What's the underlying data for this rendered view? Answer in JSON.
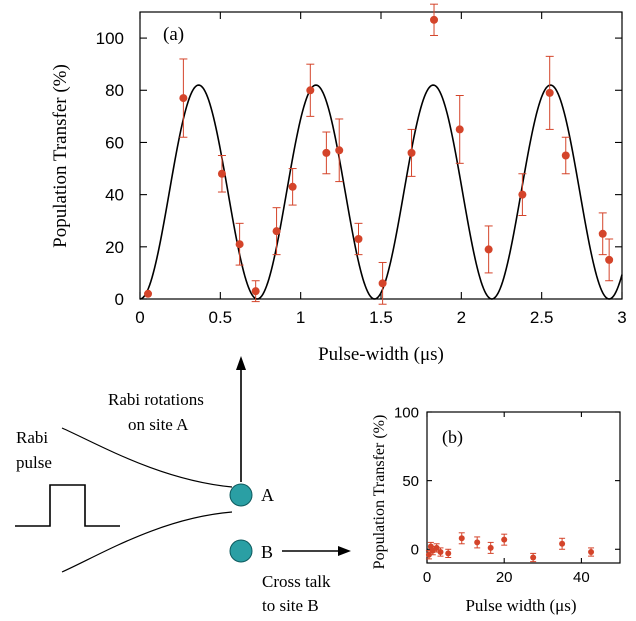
{
  "chart_data": [
    {
      "type": "scatter",
      "panel_label": "(a)",
      "xlabel": "Pulse-width (μs)",
      "ylabel": "Population Transfer (%)",
      "xlim": [
        0,
        3
      ],
      "ylim": [
        0,
        110
      ],
      "xticks": [
        0,
        0.5,
        1,
        1.5,
        2,
        2.5,
        3
      ],
      "xtick_labels": [
        "0",
        "0.5",
        "1",
        "1.5",
        "2",
        "2.5",
        "3"
      ],
      "yticks": [
        0,
        20,
        40,
        60,
        80,
        100
      ],
      "ytick_labels": [
        "0",
        "20",
        "40",
        "60",
        "80",
        "100"
      ],
      "grid": false,
      "fit": {
        "amplitude": 82,
        "period": 0.73,
        "phase_shift": 0.0
      },
      "points": [
        {
          "x": 0.05,
          "y": 2,
          "err": 0
        },
        {
          "x": 0.27,
          "y": 77,
          "err": 15
        },
        {
          "x": 0.51,
          "y": 48,
          "err": 7
        },
        {
          "x": 0.62,
          "y": 21,
          "err": 8
        },
        {
          "x": 0.72,
          "y": 3,
          "err": 4
        },
        {
          "x": 0.85,
          "y": 26,
          "err": 9
        },
        {
          "x": 0.95,
          "y": 43,
          "err": 7
        },
        {
          "x": 1.06,
          "y": 80,
          "err": 10
        },
        {
          "x": 1.16,
          "y": 56,
          "err": 8
        },
        {
          "x": 1.24,
          "y": 57,
          "err": 12
        },
        {
          "x": 1.36,
          "y": 23,
          "err": 6
        },
        {
          "x": 1.51,
          "y": 6,
          "err": 8
        },
        {
          "x": 1.69,
          "y": 56,
          "err": 9
        },
        {
          "x": 1.83,
          "y": 107,
          "err": 6
        },
        {
          "x": 1.99,
          "y": 65,
          "err": 13
        },
        {
          "x": 2.17,
          "y": 19,
          "err": 9
        },
        {
          "x": 2.38,
          "y": 40,
          "err": 8
        },
        {
          "x": 2.55,
          "y": 79,
          "err": 14
        },
        {
          "x": 2.65,
          "y": 55,
          "err": 7
        },
        {
          "x": 2.88,
          "y": 25,
          "err": 8
        },
        {
          "x": 2.92,
          "y": 15,
          "err": 8
        }
      ]
    },
    {
      "type": "scatter",
      "panel_label": "(b)",
      "xlabel": "Pulse width (μs)",
      "ylabel": "Population Transfer (%)",
      "xlim": [
        0,
        50
      ],
      "ylim": [
        -10,
        100
      ],
      "xticks": [
        0,
        20,
        40
      ],
      "xtick_labels": [
        "0",
        "20",
        "40"
      ],
      "yticks": [
        0,
        50,
        100
      ],
      "ytick_labels": [
        "0",
        "50",
        "100"
      ],
      "grid": false,
      "points": [
        {
          "x": 0.5,
          "y": -4,
          "err": 3
        },
        {
          "x": 1.0,
          "y": 2,
          "err": 3
        },
        {
          "x": 1.5,
          "y": -1,
          "err": 3
        },
        {
          "x": 2.5,
          "y": 1,
          "err": 3
        },
        {
          "x": 3.5,
          "y": -2,
          "err": 3
        },
        {
          "x": 5.5,
          "y": -3,
          "err": 3
        },
        {
          "x": 9,
          "y": 8,
          "err": 4
        },
        {
          "x": 13,
          "y": 5,
          "err": 4
        },
        {
          "x": 16.5,
          "y": 1,
          "err": 4
        },
        {
          "x": 20,
          "y": 7,
          "err": 4
        },
        {
          "x": 27.5,
          "y": -6,
          "err": 3
        },
        {
          "x": 35,
          "y": 4,
          "err": 4
        },
        {
          "x": 42.5,
          "y": -2,
          "err": 3
        }
      ]
    }
  ],
  "schematic": {
    "rabi_pulse_label_line1": "Rabi",
    "rabi_pulse_label_line2": "pulse",
    "rotations_label_line1": "Rabi rotations",
    "rotations_label_line2": "on site A",
    "site_a_label": "A",
    "site_b_label": "B",
    "crosstalk_label_line1": "Cross talk",
    "crosstalk_label_line2": "to site B",
    "site_color": "#2a9fa4"
  },
  "colors": {
    "data_points": "#d4442a",
    "fit_curve": "#000000",
    "axes": "#000000"
  }
}
